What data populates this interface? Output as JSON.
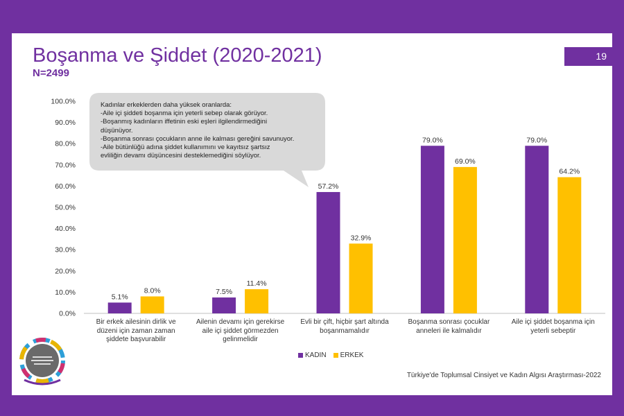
{
  "slide": {
    "title": "Boşanma ve Şiddet (2020-2021)",
    "subtitle": "N=2499",
    "page_number": "19",
    "source": "Türkiye'de Toplumsal Cinsiyet ve Kadın Algısı Araştırması-2022",
    "logo_icon": "research-center-logo-icon"
  },
  "callout": {
    "lines": [
      "Kadınlar erkeklerden daha yüksek oranlarda:",
      "-Aile içi şiddeti boşanma için yeterli sebep olarak görüyor.",
      "-Boşanmış kadınların iffetinin eski eşleri ilgilendirmediğini",
      "düşünüyor.",
      "-Boşanma sonrası çocukların anne ile kalması gereğini savunuyor.",
      "-Aile bütünlüğü adına şiddet kullanımını ve kayıtsız şartsız",
      "evliliğin devamı düşüncesini  desteklemediğini söylüyor."
    ]
  },
  "chart_data": {
    "type": "bar",
    "categories": [
      [
        "Bir erkek ailesinin dirlik ve",
        "düzeni için zaman zaman",
        "şiddete başvurabilir"
      ],
      [
        "Ailenin devamı için gerekirse",
        "aile içi şiddet görmezden",
        "gelinmelidir"
      ],
      [
        "Evli bir çift, hiçbir şart altında",
        "boşanmamalıdır"
      ],
      [
        "Boşanma sonrası çocuklar",
        "anneleri ile kalmalıdır"
      ],
      [
        "Aile içi şiddet boşanma için",
        "yeterli sebeptir"
      ]
    ],
    "series": [
      {
        "name": "KADIN",
        "color": "#7030a0",
        "values": [
          5.1,
          7.5,
          57.2,
          79.0,
          79.0
        ],
        "labels": [
          "5.1%",
          "7.5%",
          "57.2%",
          "79.0%",
          "79.0%"
        ]
      },
      {
        "name": "ERKEK",
        "color": "#ffc000",
        "values": [
          8.0,
          11.4,
          32.9,
          69.0,
          64.2
        ],
        "labels": [
          "8.0%",
          "11.4%",
          "32.9%",
          "69.0%",
          "64.2%"
        ]
      }
    ],
    "yticks": [
      "0.0%",
      "10.0%",
      "20.0%",
      "30.0%",
      "40.0%",
      "50.0%",
      "60.0%",
      "70.0%",
      "80.0%",
      "90.0%",
      "100.0%"
    ],
    "ylim": [
      0,
      100
    ],
    "grid": false,
    "legend": "bottom"
  }
}
